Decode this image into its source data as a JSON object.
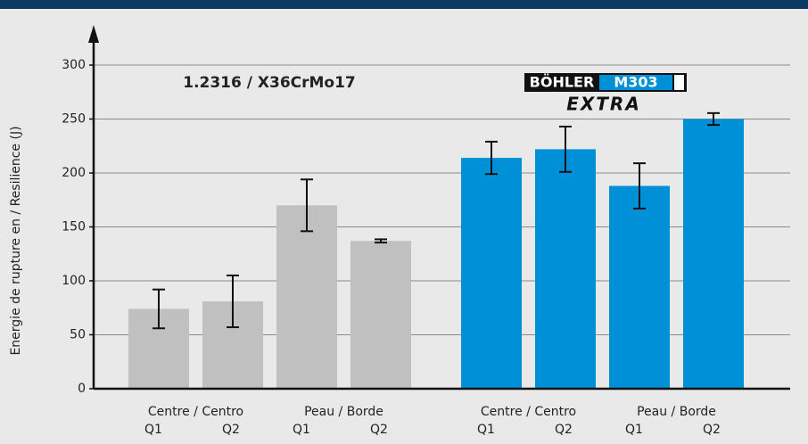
{
  "chart_data": {
    "type": "bar",
    "ylabel": "Energie de rupture en / Resilience (J)",
    "categories": [
      "Q1",
      "Q2",
      "Q1",
      "Q2"
    ],
    "subgroups": [
      "Centre / Centro",
      "Peau / Borde"
    ],
    "series": [
      {
        "name": "1.2316 / X36CrMo17",
        "color": "#c0c0c0",
        "values": [
          74,
          81,
          170,
          137
        ],
        "errors": [
          18,
          24,
          24,
          1.5
        ]
      },
      {
        "color": "#0090d8",
        "values": [
          214,
          222,
          188,
          250
        ],
        "errors": [
          15,
          21,
          21,
          5.5
        ]
      }
    ],
    "logo": {
      "brand": "BÖHLER",
      "grade": "M303",
      "suffix": "EXTRA"
    },
    "ylim": [
      0,
      300
    ],
    "yticks": [
      0,
      50,
      100,
      150,
      200,
      250,
      300
    ],
    "grid": true
  }
}
